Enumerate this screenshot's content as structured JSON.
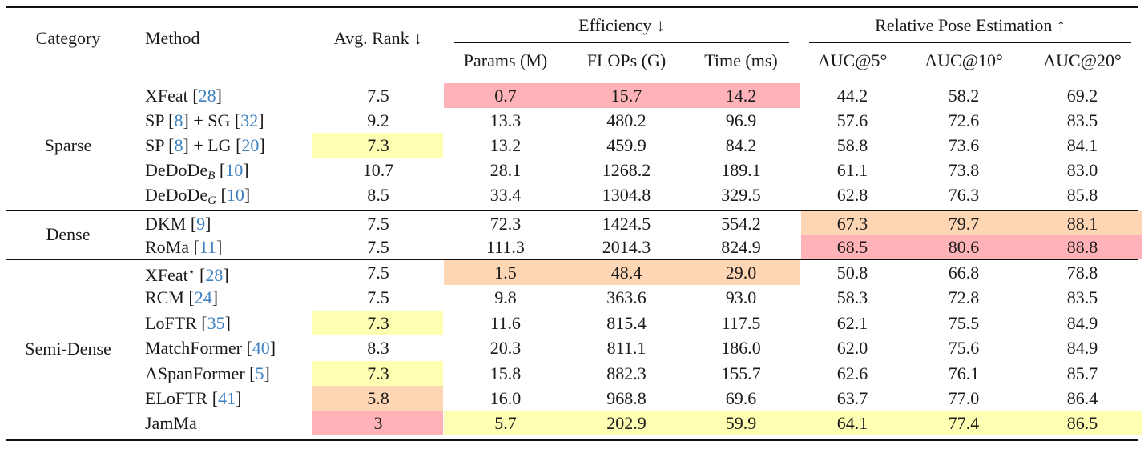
{
  "header": {
    "category": "Category",
    "method": "Method",
    "avg_rank": "Avg. Rank ↓",
    "efficiency": "Efficiency ↓",
    "rpe": "Relative Pose Estimation ↑",
    "params": "Params (M)",
    "flops": "FLOPs (G)",
    "time": "Time (ms)",
    "auc5": "AUC@5°",
    "auc10": "AUC@10°",
    "auc20": "AUC@20°"
  },
  "categories": [
    "Sparse",
    "Dense",
    "Semi-Dense"
  ],
  "rows": [
    {
      "name": "XFeat",
      "cite": [
        "28"
      ],
      "rank": "7.5",
      "params": "0.7",
      "flops": "15.7",
      "time": "14.2",
      "auc5": "44.2",
      "auc10": "58.2",
      "auc20": "69.2"
    },
    {
      "name": "SP",
      "cite": [
        "8",
        "32"
      ],
      "join": "SG",
      "rank": "9.2",
      "params": "13.3",
      "flops": "480.2",
      "time": "96.9",
      "auc5": "57.6",
      "auc10": "72.6",
      "auc20": "83.5"
    },
    {
      "name": "SP",
      "cite": [
        "8",
        "20"
      ],
      "join": "LG",
      "rank": "7.3",
      "params": "13.2",
      "flops": "459.9",
      "time": "84.2",
      "auc5": "58.8",
      "auc10": "73.6",
      "auc20": "84.1"
    },
    {
      "name": "DeDoDe",
      "sub": "B",
      "cite": [
        "10"
      ],
      "rank": "10.7",
      "params": "28.1",
      "flops": "1268.2",
      "time": "189.1",
      "auc5": "61.1",
      "auc10": "73.8",
      "auc20": "83.0"
    },
    {
      "name": "DeDoDe",
      "sub": "G",
      "cite": [
        "10"
      ],
      "rank": "8.5",
      "params": "33.4",
      "flops": "1304.8",
      "time": "329.5",
      "auc5": "62.8",
      "auc10": "76.3",
      "auc20": "85.8"
    },
    {
      "name": "DKM",
      "cite": [
        "9"
      ],
      "rank": "7.5",
      "params": "72.3",
      "flops": "1424.5",
      "time": "554.2",
      "auc5": "67.3",
      "auc10": "79.7",
      "auc20": "88.1"
    },
    {
      "name": "RoMa",
      "cite": [
        "11"
      ],
      "rank": "7.5",
      "params": "111.3",
      "flops": "2014.3",
      "time": "824.9",
      "auc5": "68.5",
      "auc10": "80.6",
      "auc20": "88.8"
    },
    {
      "name": "XFeat",
      "sup": "⋆",
      "cite": [
        "28"
      ],
      "rank": "7.5",
      "params": "1.5",
      "flops": "48.4",
      "time": "29.0",
      "auc5": "50.8",
      "auc10": "66.8",
      "auc20": "78.8"
    },
    {
      "name": "RCM",
      "cite": [
        "24"
      ],
      "rank": "7.5",
      "params": "9.8",
      "flops": "363.6",
      "time": "93.0",
      "auc5": "58.3",
      "auc10": "72.8",
      "auc20": "83.5"
    },
    {
      "name": "LoFTR",
      "cite": [
        "35"
      ],
      "rank": "7.3",
      "params": "11.6",
      "flops": "815.4",
      "time": "117.5",
      "auc5": "62.1",
      "auc10": "75.5",
      "auc20": "84.9"
    },
    {
      "name": "MatchFormer",
      "cite": [
        "40"
      ],
      "rank": "8.3",
      "params": "20.3",
      "flops": "811.1",
      "time": "186.0",
      "auc5": "62.0",
      "auc10": "75.6",
      "auc20": "84.9"
    },
    {
      "name": "ASpanFormer",
      "cite": [
        "5"
      ],
      "rank": "7.3",
      "params": "15.8",
      "flops": "882.3",
      "time": "155.7",
      "auc5": "62.6",
      "auc10": "76.1",
      "auc20": "85.7"
    },
    {
      "name": "ELoFTR",
      "cite": [
        "41"
      ],
      "rank": "5.8",
      "params": "16.0",
      "flops": "968.8",
      "time": "69.6",
      "auc5": "63.7",
      "auc10": "77.0",
      "auc20": "86.4"
    },
    {
      "name": "JamMa",
      "rank": "3",
      "params": "5.7",
      "flops": "202.9",
      "time": "59.9",
      "auc5": "64.1",
      "auc10": "77.4",
      "auc20": "86.5"
    }
  ],
  "highlight_colors": {
    "best": "#ffb3b8",
    "second": "#ffd6b3",
    "third": "#ffffb3"
  }
}
